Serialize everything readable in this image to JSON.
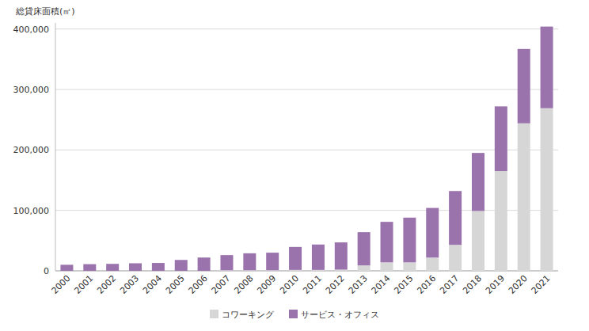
{
  "chart_data": {
    "type": "bar",
    "ylabel": "総貸床面積(㎡)",
    "categories": [
      "2000",
      "2001",
      "2002",
      "2003",
      "2004",
      "2005",
      "2006",
      "2007",
      "2008",
      "2009",
      "2010",
      "2011",
      "2012",
      "2013",
      "2014",
      "2015",
      "2016",
      "2017",
      "2018",
      "2019",
      "2020",
      "2021"
    ],
    "series": [
      {
        "name": "コワーキング",
        "color": "#d6d6d6",
        "values": [
          0,
          0,
          0,
          0,
          0,
          0,
          0,
          1000,
          1000,
          1000,
          1500,
          1500,
          2000,
          9000,
          14000,
          14000,
          22000,
          43000,
          99000,
          165000,
          244000,
          269000
        ]
      },
      {
        "name": "サービス・オフィス",
        "color": "#9a73ad",
        "values": [
          10000,
          11000,
          11500,
          12500,
          13000,
          18000,
          22000,
          25000,
          28000,
          29000,
          38000,
          42000,
          45000,
          55000,
          67000,
          74000,
          82000,
          89000,
          96000,
          107000,
          123000,
          135000
        ]
      }
    ],
    "stacked": true,
    "ylim": [
      0,
      410000
    ],
    "yticks": [
      0,
      {
        "value": 100000,
        "label": "100,000"
      },
      {
        "value": 200000,
        "label": "200,000"
      },
      {
        "value": 300000,
        "label": "300,000"
      },
      {
        "value": 400000,
        "label": "400,000"
      }
    ],
    "grid": true,
    "legend": "bottom"
  }
}
